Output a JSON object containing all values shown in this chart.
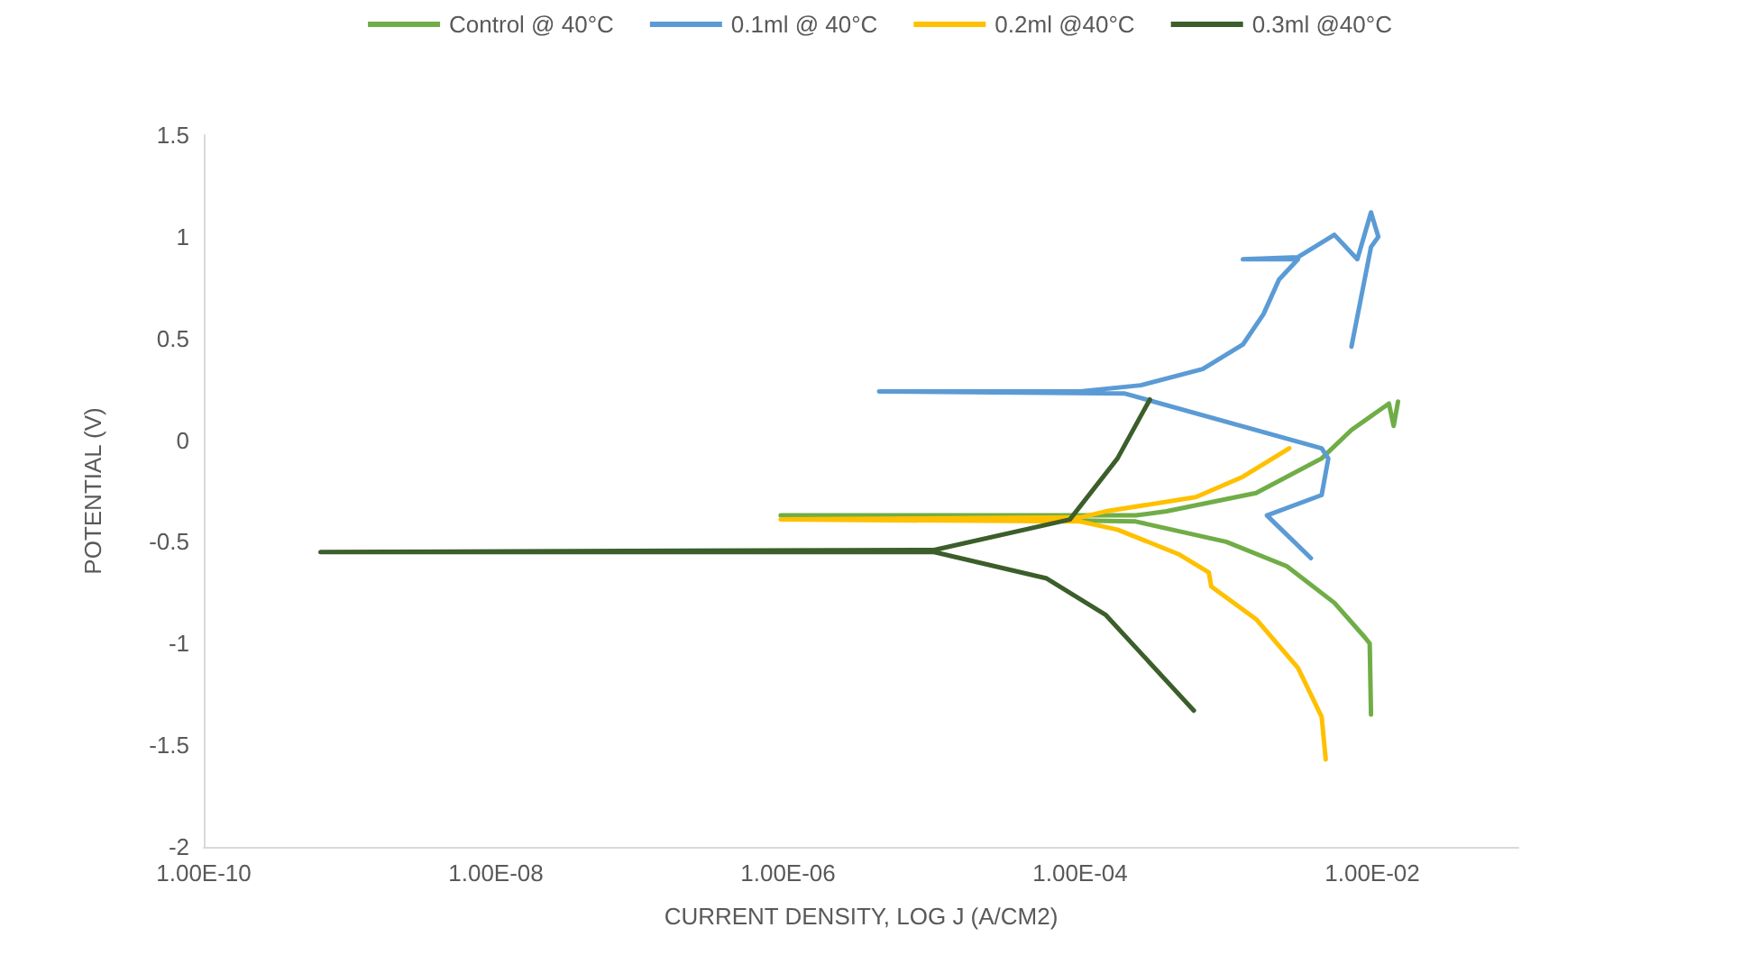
{
  "chart_data": {
    "type": "line",
    "xlabel": "CURRENT DENSITY, LOG J (A/CM2)",
    "ylabel": "POTENTIAL (V)",
    "log": "x",
    "grid": false,
    "legend": "top",
    "marker": "none",
    "line_style": "solid",
    "xlim": [
      1e-10,
      0.1
    ],
    "xticks": [
      {
        "value": 1e-10,
        "label": "1.00E-10"
      },
      {
        "value": 1e-08,
        "label": "1.00E-08"
      },
      {
        "value": 1e-06,
        "label": "1.00E-06"
      },
      {
        "value": 0.0001,
        "label": "1.00E-04"
      },
      {
        "value": 0.01,
        "label": "1.00E-02"
      }
    ],
    "ylim": [
      -2,
      1.5
    ],
    "yticks": [
      -2,
      -1.5,
      -1,
      -0.5,
      0,
      0.5,
      1,
      1.5
    ],
    "series": [
      {
        "name": "Control @ 40°C",
        "color": "#70ad47",
        "x": [
          0.0098,
          0.0096,
          0.0089,
          0.0055,
          0.0026,
          0.001,
          0.00024,
          8.9e-07,
          0.00024,
          0.00039,
          0.0016,
          0.0045,
          0.0072,
          0.013,
          0.014,
          0.015
        ],
        "values": [
          -1.35,
          -1.0,
          -0.97,
          -0.8,
          -0.62,
          -0.5,
          -0.4,
          -0.37,
          -0.37,
          -0.35,
          -0.26,
          -0.09,
          0.05,
          0.18,
          0.07,
          0.19
        ]
      },
      {
        "name": "0.1ml @ 40°C",
        "color": "#5b9bd5",
        "x": [
          0.0038,
          0.0019,
          0.0045,
          0.005,
          0.0045,
          0.0002,
          4.2e-06,
          0.0001,
          0.00026,
          0.00069,
          0.0013,
          0.0018,
          0.0023,
          0.0031,
          0.0013,
          0.0031,
          0.0055,
          0.0079,
          0.0098,
          0.011,
          0.0098,
          0.0072
        ],
        "values": [
          -0.58,
          -0.37,
          -0.27,
          -0.09,
          -0.04,
          0.23,
          0.24,
          0.24,
          0.27,
          0.35,
          0.47,
          0.62,
          0.79,
          0.89,
          0.89,
          0.9,
          1.01,
          0.89,
          1.12,
          1.0,
          0.95,
          0.46
        ]
      },
      {
        "name": "0.2ml @40°C",
        "color": "#ffc000",
        "x": [
          0.0048,
          0.0045,
          0.0031,
          0.0016,
          0.00079,
          0.00076,
          0.00047,
          0.00018,
          0.0001,
          8.9e-07,
          0.0001,
          0.00015,
          0.00062,
          0.0013,
          0.0027
        ],
        "values": [
          -1.57,
          -1.36,
          -1.12,
          -0.88,
          -0.72,
          -0.65,
          -0.56,
          -0.44,
          -0.4,
          -0.39,
          -0.38,
          -0.35,
          -0.28,
          -0.18,
          -0.04
        ]
      },
      {
        "name": "0.3ml @40°C",
        "color": "#3b5e2b",
        "x": [
          0.0006,
          0.00015,
          5.9e-05,
          1e-05,
          6.3e-10,
          1e-05,
          8.5e-05,
          0.00018,
          0.0003
        ],
        "values": [
          -1.33,
          -0.86,
          -0.68,
          -0.55,
          -0.55,
          -0.54,
          -0.39,
          -0.09,
          0.2
        ]
      }
    ]
  }
}
